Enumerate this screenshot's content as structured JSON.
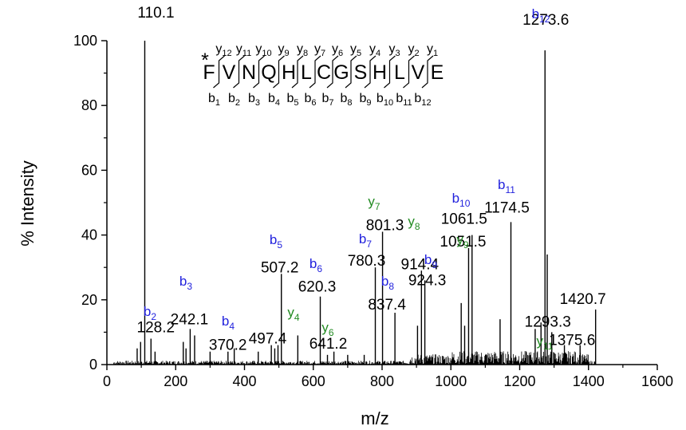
{
  "colors": {
    "b_ion": "#2222dd",
    "y_ion": "#228b22",
    "axis": "#000000"
  },
  "chart_data": {
    "type": "line",
    "title": "",
    "xlabel": "m/z",
    "ylabel": "% Intensity",
    "xlim": [
      0,
      1600
    ],
    "ylim": [
      0,
      100
    ],
    "xticks": [
      "0",
      "200",
      "400",
      "600",
      "800",
      "1000",
      "1200",
      "1400",
      "1600"
    ],
    "yticks": [
      "0",
      "20",
      "40",
      "60",
      "80",
      "100"
    ],
    "grid": false,
    "peaks": [
      {
        "mz": 88,
        "intensity": 5
      },
      {
        "mz": 98,
        "intensity": 7
      },
      {
        "mz": 110.1,
        "intensity": 100
      },
      {
        "mz": 128.2,
        "intensity": 8
      },
      {
        "mz": 140,
        "intensity": 4
      },
      {
        "mz": 222,
        "intensity": 7
      },
      {
        "mz": 230,
        "intensity": 5
      },
      {
        "mz": 242.1,
        "intensity": 11
      },
      {
        "mz": 255,
        "intensity": 9
      },
      {
        "mz": 300,
        "intensity": 4
      },
      {
        "mz": 352,
        "intensity": 4
      },
      {
        "mz": 370.2,
        "intensity": 5
      },
      {
        "mz": 440,
        "intensity": 4
      },
      {
        "mz": 478,
        "intensity": 6
      },
      {
        "mz": 488,
        "intensity": 5
      },
      {
        "mz": 497.4,
        "intensity": 6
      },
      {
        "mz": 507.2,
        "intensity": 28
      },
      {
        "mz": 555,
        "intensity": 9
      },
      {
        "mz": 620.3,
        "intensity": 21
      },
      {
        "mz": 641.2,
        "intensity": 3
      },
      {
        "mz": 660,
        "intensity": 4
      },
      {
        "mz": 700,
        "intensity": 3
      },
      {
        "mz": 748,
        "intensity": 3
      },
      {
        "mz": 780.3,
        "intensity": 30
      },
      {
        "mz": 801.3,
        "intensity": 41
      },
      {
        "mz": 837.4,
        "intensity": 16
      },
      {
        "mz": 903,
        "intensity": 12
      },
      {
        "mz": 914.4,
        "intensity": 29
      },
      {
        "mz": 924.3,
        "intensity": 26
      },
      {
        "mz": 1030,
        "intensity": 19
      },
      {
        "mz": 1040,
        "intensity": 12
      },
      {
        "mz": 1051.5,
        "intensity": 36
      },
      {
        "mz": 1061.5,
        "intensity": 40
      },
      {
        "mz": 1143,
        "intensity": 14
      },
      {
        "mz": 1174.5,
        "intensity": 44
      },
      {
        "mz": 1245,
        "intensity": 11
      },
      {
        "mz": 1262,
        "intensity": 13
      },
      {
        "mz": 1273.6,
        "intensity": 97
      },
      {
        "mz": 1280,
        "intensity": 34
      },
      {
        "mz": 1293.3,
        "intensity": 10
      },
      {
        "mz": 1330,
        "intensity": 6
      },
      {
        "mz": 1375.6,
        "intensity": 6
      },
      {
        "mz": 1420.7,
        "intensity": 17
      }
    ],
    "peak_labels": [
      {
        "text": "110.1",
        "mz": 110.1,
        "intensity": 100
      },
      {
        "text": "128.2",
        "mz": 128.2,
        "intensity": 8
      },
      {
        "text": "242.1",
        "mz": 242.1,
        "intensity": 11
      },
      {
        "text": "370.2",
        "mz": 370.2,
        "intensity": 5
      },
      {
        "text": "497.4",
        "mz": 497.4,
        "intensity": 6
      },
      {
        "text": "507.2",
        "mz": 507.2,
        "intensity": 28
      },
      {
        "text": "620.3",
        "mz": 620.3,
        "intensity": 21
      },
      {
        "text": "641.2",
        "mz": 641.2,
        "intensity": 3
      },
      {
        "text": "780.3",
        "mz": 780.3,
        "intensity": 30
      },
      {
        "text": "801.3",
        "mz": 801.3,
        "intensity": 41
      },
      {
        "text": "837.4",
        "mz": 837.4,
        "intensity": 16
      },
      {
        "text": "914.4",
        "mz": 914.4,
        "intensity": 29
      },
      {
        "text": "924.3",
        "mz": 924.3,
        "intensity": 26
      },
      {
        "text": "1051.5",
        "mz": 1051.5,
        "intensity": 36
      },
      {
        "text": "1061.5",
        "mz": 1061.5,
        "intensity": 40
      },
      {
        "text": "1174.5",
        "mz": 1174.5,
        "intensity": 44
      },
      {
        "text": "1273.6",
        "mz": 1273.6,
        "intensity": 97
      },
      {
        "text": "1293.3",
        "mz": 1293.3,
        "intensity": 10
      },
      {
        "text": "1375.6",
        "mz": 1375.6,
        "intensity": 6
      },
      {
        "text": "1420.7",
        "mz": 1420.7,
        "intensity": 17
      }
    ],
    "ion_labels": [
      {
        "ion": "b",
        "num": "2",
        "mz": 128.2
      },
      {
        "ion": "b",
        "num": "3",
        "mz": 242.1
      },
      {
        "ion": "b",
        "num": "4",
        "mz": 370.2
      },
      {
        "ion": "y",
        "num": "4",
        "mz": 497.4
      },
      {
        "ion": "b",
        "num": "5",
        "mz": 507.2
      },
      {
        "ion": "b",
        "num": "6",
        "mz": 620.3
      },
      {
        "ion": "y",
        "num": "6",
        "mz": 641.2
      },
      {
        "ion": "b",
        "num": "7",
        "mz": 780.3
      },
      {
        "ion": "y",
        "num": "7",
        "mz": 801.3
      },
      {
        "ion": "b",
        "num": "8",
        "mz": 837.4
      },
      {
        "ion": "y",
        "num": "8",
        "mz": 914.4
      },
      {
        "ion": "b",
        "num": "9",
        "mz": 924.3
      },
      {
        "ion": "y",
        "num": "9",
        "mz": 1051.5
      },
      {
        "ion": "b",
        "num": "10",
        "mz": 1061.5
      },
      {
        "ion": "b",
        "num": "11",
        "mz": 1174.5
      },
      {
        "ion": "y",
        "num": "11",
        "mz": 1293.3
      },
      {
        "ion": "b",
        "num": "12",
        "mz": 1273.6
      }
    ],
    "sequence": {
      "residues": [
        "F",
        "V",
        "N",
        "Q",
        "H",
        "L",
        "C",
        "G",
        "S",
        "H",
        "L",
        "V",
        "E"
      ],
      "modification_mark": "*",
      "y_ions": [
        "y12",
        "y11",
        "y10",
        "y9",
        "y8",
        "y7",
        "y6",
        "y5",
        "y4",
        "y3",
        "y2",
        "y1"
      ],
      "b_ions": [
        "b1",
        "b2",
        "b3",
        "b4",
        "b5",
        "b6",
        "b7",
        "b8",
        "b9",
        "b10",
        "b11",
        "b12"
      ]
    }
  }
}
